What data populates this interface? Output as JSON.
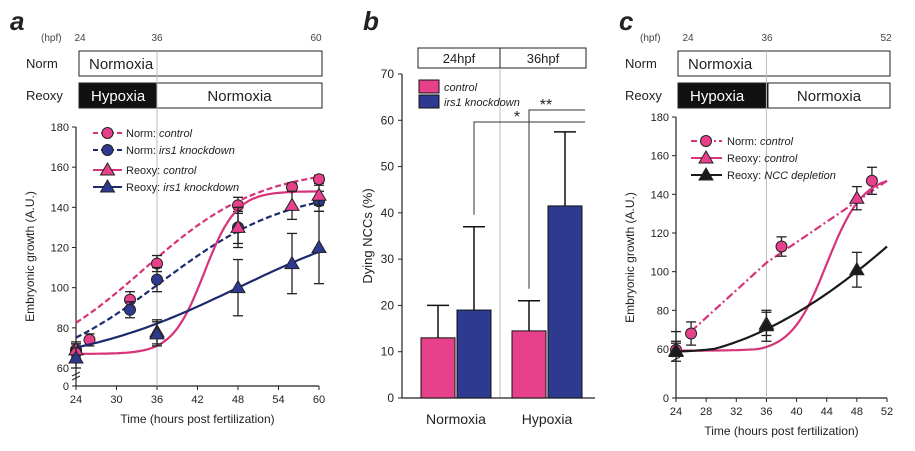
{
  "colors": {
    "pink": "#d6337a",
    "pink_fill": "#e8418c",
    "navy": "#1e2a6e",
    "navy_fill": "#2e3a8f",
    "black": "#1a1a1a",
    "grid": "#bbbbbb"
  },
  "panel_letters": {
    "a": "a",
    "b": "b",
    "c": "c"
  },
  "chart_data": [
    {
      "panel": "a",
      "type": "line",
      "xlabel": "Time (hours post fertilization)",
      "ylabel": "Embryonic growth (A.U.)",
      "xlim": [
        24,
        60
      ],
      "ylim": [
        0,
        180
      ],
      "axis_break_at": 60,
      "xticks": [
        24,
        30,
        36,
        42,
        48,
        54,
        60
      ],
      "yticks": [
        0,
        60,
        80,
        100,
        120,
        140,
        160,
        180
      ],
      "ref_line_x": 36,
      "timeline": {
        "hpf_label": "(hpf)",
        "ticks": [
          "24",
          "36",
          "60"
        ],
        "rows": [
          {
            "label": "Norm",
            "segments": [
              {
                "text": "Normoxia",
                "fill": "white"
              }
            ]
          },
          {
            "label": "Reoxy",
            "segments": [
              {
                "text": "Hypoxia",
                "fill": "black"
              },
              {
                "text": "Normoxia",
                "fill": "white"
              }
            ]
          }
        ]
      },
      "legend": [
        {
          "prefix": "Norm: ",
          "name": "control"
        },
        {
          "prefix": "Norm: ",
          "name": "irs1 knockdown"
        },
        {
          "prefix": "Reoxy: ",
          "name": "control"
        },
        {
          "prefix": "Reoxy: ",
          "name": "irs1 knockdown"
        }
      ],
      "series": [
        {
          "name": "Norm: control",
          "x": [
            24,
            26,
            32,
            36,
            48,
            56,
            60
          ],
          "y": [
            69,
            74,
            94,
            112,
            141,
            150,
            154
          ],
          "err": [
            3,
            3,
            4,
            4,
            4,
            2,
            2
          ]
        },
        {
          "name": "Norm: irs1 knockdown",
          "x": [
            24,
            32,
            36,
            48,
            60
          ],
          "y": [
            68,
            89,
            104,
            130,
            143
          ],
          "err": [
            4,
            4,
            6,
            8,
            5
          ]
        },
        {
          "name": "Reoxy: control",
          "x": [
            24,
            36,
            48,
            56,
            60
          ],
          "y": [
            69,
            78,
            130,
            141,
            146
          ],
          "err": [
            4,
            6,
            10,
            7,
            5
          ]
        },
        {
          "name": "Reoxy: irs1 knockdown",
          "x": [
            24,
            36,
            48,
            56,
            60
          ],
          "y": [
            65,
            77,
            100,
            112,
            120
          ],
          "err": [
            5,
            6,
            14,
            15,
            18
          ]
        }
      ]
    },
    {
      "panel": "b",
      "type": "bar",
      "ylabel": "Dying NCCs (%)",
      "ylim": [
        0,
        70
      ],
      "yticks": [
        0,
        10,
        20,
        30,
        40,
        50,
        60,
        70
      ],
      "categories": [
        "Normoxia",
        "Hypoxia"
      ],
      "timeline": {
        "cells": [
          "24hpf",
          "36hpf"
        ]
      },
      "legend": [
        "control",
        "irs1 knockdown"
      ],
      "series": [
        {
          "name": "control",
          "values": [
            13,
            14.5
          ],
          "err": [
            7,
            6.5
          ]
        },
        {
          "name": "irs1 knockdown",
          "values": [
            19,
            41.5
          ],
          "err": [
            18,
            16
          ]
        }
      ],
      "significance": [
        "*",
        "**"
      ]
    },
    {
      "panel": "c",
      "type": "line",
      "xlabel": "Time (hours post fertilization)",
      "ylabel": "Embryonic growth (A.U.)",
      "xlim": [
        24,
        52
      ],
      "ylim": [
        0,
        180
      ],
      "axis_break_at": 60,
      "xticks": [
        24,
        28,
        32,
        36,
        40,
        44,
        48,
        52
      ],
      "yticks": [
        0,
        60,
        80,
        100,
        120,
        140,
        160,
        180
      ],
      "ref_line_x": 36,
      "timeline": {
        "hpf_label": "(hpf)",
        "ticks": [
          "24",
          "36",
          "52"
        ],
        "rows": [
          {
            "label": "Norm",
            "segments": [
              {
                "text": "Normoxia",
                "fill": "white"
              }
            ]
          },
          {
            "label": "Reoxy",
            "segments": [
              {
                "text": "Hypoxia",
                "fill": "black"
              },
              {
                "text": "Normoxia",
                "fill": "white"
              }
            ]
          }
        ]
      },
      "legend": [
        {
          "prefix": "Norm: ",
          "name": "control"
        },
        {
          "prefix": "Reoxy: ",
          "name": "control"
        },
        {
          "prefix": "Reoxy: ",
          "name": "NCC depletion"
        }
      ],
      "series": [
        {
          "name": "Norm: control",
          "x": [
            24,
            26,
            38,
            50
          ],
          "y": [
            59,
            68,
            113,
            147
          ],
          "err": [
            5,
            6,
            5,
            7
          ]
        },
        {
          "name": "Reoxy: control",
          "x": [
            24,
            36,
            48
          ],
          "y": [
            58,
            73,
            138
          ],
          "err": [
            5,
            6,
            6
          ]
        },
        {
          "name": "Reoxy: NCC depletion",
          "x": [
            24,
            36,
            48
          ],
          "y": [
            57,
            72,
            101
          ],
          "err": [
            12,
            8,
            9
          ]
        }
      ]
    }
  ]
}
